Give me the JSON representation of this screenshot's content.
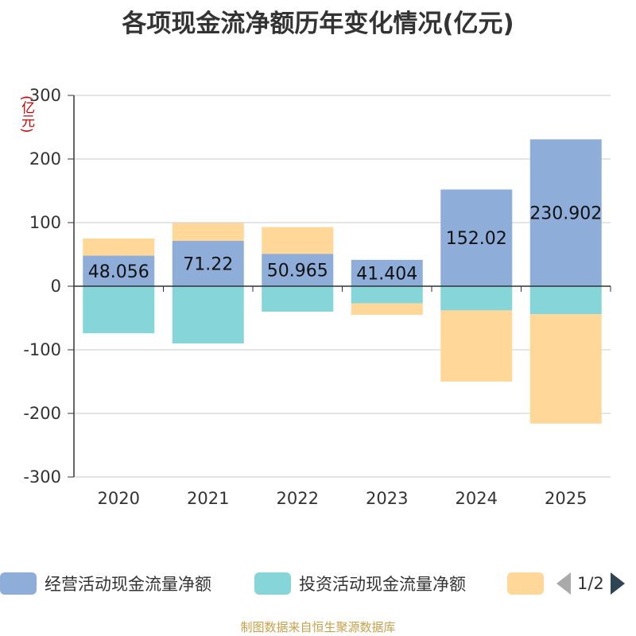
{
  "title": "各项现金流净额历年变化情况(亿元)",
  "unit_label": "(亿元)",
  "legend": {
    "items": [
      {
        "label": "经营活动现金流量净额",
        "color": "#8eadd9"
      },
      {
        "label": "投资活动现金流量净额",
        "color": "#86d5d8"
      },
      {
        "label": "",
        "color": "#ffd899"
      }
    ],
    "page": "1/2"
  },
  "footer": "制图数据来自恒生聚源数据库",
  "chart_data": {
    "type": "bar",
    "stacked": true,
    "categories": [
      "2020",
      "2021",
      "2022",
      "2023",
      "2024",
      "2025"
    ],
    "ylim": [
      -300,
      300
    ],
    "yticks": [
      300,
      200,
      100,
      0,
      -100,
      -200,
      -300
    ],
    "series": [
      {
        "name": "经营活动现金流量净额",
        "color": "#8eadd9",
        "values": [
          48.056,
          71.22,
          50.965,
          41.404,
          152.02,
          230.902
        ],
        "labels": [
          "48.056",
          "71.22",
          "50.965",
          "41.404",
          "152.02",
          "230.902"
        ]
      },
      {
        "name": "投资活动现金流量净额",
        "color": "#86d5d8",
        "values": [
          -74,
          -90,
          -40,
          -27,
          -38,
          -44
        ]
      },
      {
        "name": "",
        "color": "#ffd899",
        "values": [
          27,
          28,
          42,
          -18,
          -112,
          -172
        ]
      }
    ]
  }
}
